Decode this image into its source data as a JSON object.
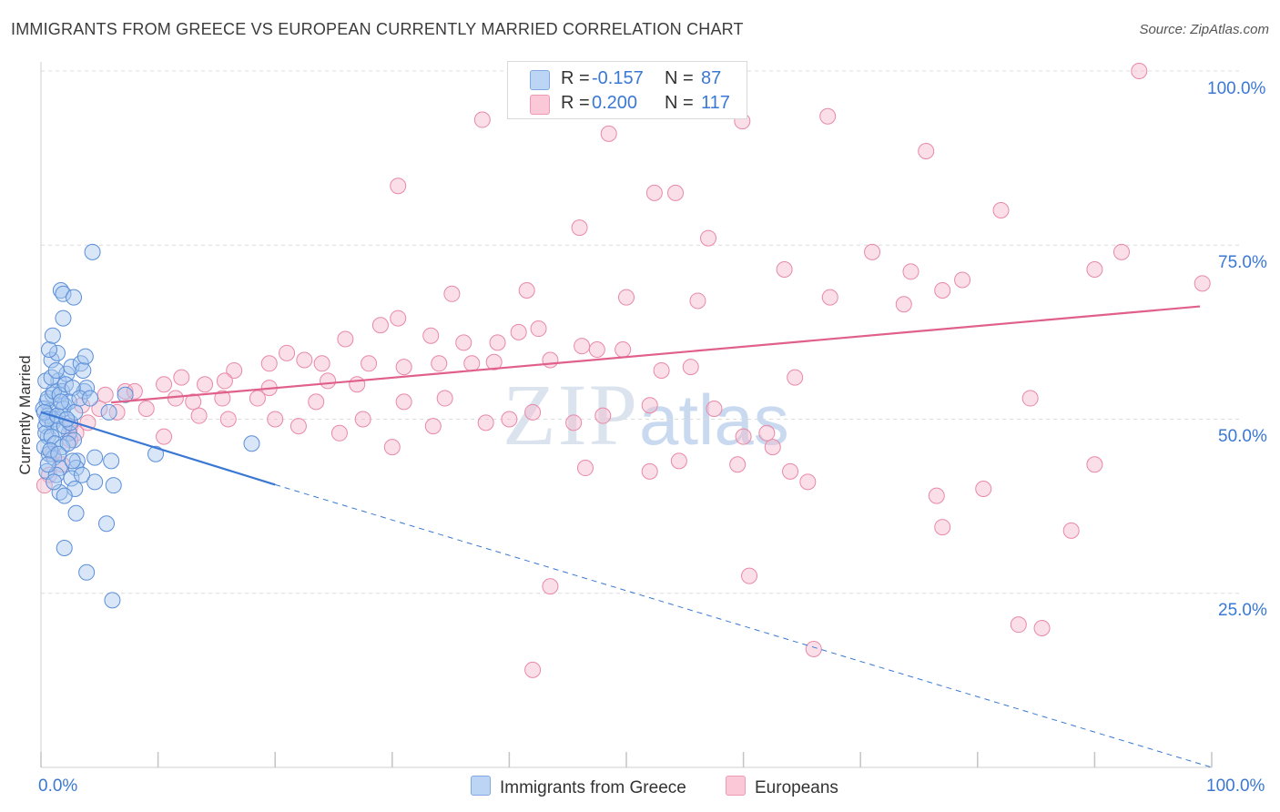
{
  "title": "IMMIGRANTS FROM GREECE VS EUROPEAN CURRENTLY MARRIED CORRELATION CHART",
  "source": "Source: ZipAtlas.com",
  "watermark": {
    "zip": "ZIP",
    "atlas": "atlas"
  },
  "legend": {
    "rows": [
      {
        "r_label": "R =",
        "r_value": "-0.157",
        "n_label": "N =",
        "n_value": "87",
        "color": "#a8c8f0"
      },
      {
        "r_label": "R =",
        "r_value": "0.200",
        "n_label": "N =",
        "n_value": "117",
        "color": "#f7b7cb"
      }
    ]
  },
  "bottom_legend": [
    "Immigrants from Greece",
    "Europeans"
  ],
  "colors": {
    "blue": "#3a78d4",
    "pink": "#e0608a",
    "blue_fill": "#a8c8f0",
    "pink_fill": "#f7b7cb"
  },
  "chart_data": {
    "type": "scatter",
    "ylabel": "Currently Married",
    "xlabel": "",
    "x_tick_labels": [
      "0.0%",
      "100.0%"
    ],
    "y_tick_labels": [
      "100.0%",
      "75.0%",
      "50.0%",
      "25.0%"
    ],
    "xlim": [
      0,
      100
    ],
    "ylim": [
      0,
      100
    ],
    "y_ticks": [
      100,
      75,
      50,
      25
    ],
    "grid": "horizontal dashed",
    "series": [
      {
        "name": "Immigrants from Greece",
        "color": "#3a78d4",
        "trend": {
          "x0": 0,
          "y0": 51.0,
          "x1": 20,
          "y1": 40.6,
          "dashed_to_x": 100,
          "dashed_to_y": 0
        },
        "points": [
          [
            0.5,
            52.5
          ],
          [
            0.8,
            51.2
          ],
          [
            1.0,
            53.5
          ],
          [
            1.2,
            50.0
          ],
          [
            0.4,
            49.0
          ],
          [
            0.6,
            47.5
          ],
          [
            1.5,
            55.5
          ],
          [
            1.8,
            54.0
          ],
          [
            2.0,
            52.0
          ],
          [
            2.2,
            56.5
          ],
          [
            0.9,
            58.5
          ],
          [
            1.4,
            59.5
          ],
          [
            2.6,
            57.5
          ],
          [
            3.4,
            58.0
          ],
          [
            3.6,
            57.0
          ],
          [
            3.8,
            59.0
          ],
          [
            1.7,
            68.5
          ],
          [
            1.9,
            68.0
          ],
          [
            2.8,
            67.5
          ],
          [
            1.9,
            64.5
          ],
          [
            4.4,
            74.0
          ],
          [
            0.3,
            46.0
          ],
          [
            0.7,
            45.0
          ],
          [
            1.1,
            44.5
          ],
          [
            1.6,
            43.0
          ],
          [
            0.5,
            42.5
          ],
          [
            1.3,
            42.0
          ],
          [
            2.4,
            48.0
          ],
          [
            2.8,
            47.0
          ],
          [
            3.1,
            44.0
          ],
          [
            3.0,
            43.0
          ],
          [
            2.6,
            41.5
          ],
          [
            4.6,
            41.0
          ],
          [
            6.2,
            40.5
          ],
          [
            2.9,
            40.0
          ],
          [
            4.6,
            44.5
          ],
          [
            6.0,
            44.0
          ],
          [
            1.6,
            39.5
          ],
          [
            2.0,
            39.0
          ],
          [
            3.0,
            36.5
          ],
          [
            5.6,
            35.0
          ],
          [
            2.0,
            31.5
          ],
          [
            3.9,
            28.0
          ],
          [
            6.1,
            24.0
          ],
          [
            5.8,
            51.0
          ],
          [
            7.2,
            53.5
          ],
          [
            3.7,
            54.0
          ],
          [
            3.9,
            54.5
          ],
          [
            0.2,
            51.5
          ],
          [
            0.6,
            50.5
          ],
          [
            1.0,
            49.5
          ],
          [
            1.5,
            48.5
          ],
          [
            2.0,
            49.0
          ],
          [
            2.5,
            49.5
          ],
          [
            0.4,
            48.0
          ],
          [
            0.9,
            47.5
          ],
          [
            1.2,
            46.5
          ],
          [
            1.8,
            46.0
          ],
          [
            2.3,
            46.5
          ],
          [
            0.6,
            53.0
          ],
          [
            1.1,
            54.0
          ],
          [
            1.6,
            53.5
          ],
          [
            2.1,
            55.0
          ],
          [
            2.7,
            54.5
          ],
          [
            0.4,
            55.5
          ],
          [
            0.9,
            56.0
          ],
          [
            1.3,
            57.0
          ],
          [
            0.7,
            60.0
          ],
          [
            1.0,
            62.0
          ],
          [
            0.3,
            51.0
          ],
          [
            0.5,
            50.0
          ],
          [
            1.9,
            51.5
          ],
          [
            2.4,
            52.5
          ],
          [
            2.9,
            51.0
          ],
          [
            3.3,
            53.0
          ],
          [
            1.4,
            50.5
          ],
          [
            1.7,
            52.5
          ],
          [
            2.2,
            50.0
          ],
          [
            0.8,
            45.5
          ],
          [
            1.5,
            45.0
          ],
          [
            2.7,
            44.0
          ],
          [
            0.6,
            43.5
          ],
          [
            1.1,
            41.0
          ],
          [
            3.5,
            42.0
          ],
          [
            9.8,
            45.0
          ],
          [
            18.0,
            46.5
          ],
          [
            4.2,
            53.0
          ]
        ]
      },
      {
        "name": "Europeans",
        "color": "#e0608a",
        "trend": {
          "x0": 6,
          "y0": 52.4,
          "x1": 99,
          "y1": 66.2
        },
        "points": [
          [
            93.8,
            100.0
          ],
          [
            37.7,
            93.0
          ],
          [
            48.5,
            91.0
          ],
          [
            59.9,
            92.8
          ],
          [
            67.2,
            93.5
          ],
          [
            75.6,
            88.5
          ],
          [
            30.5,
            83.5
          ],
          [
            52.4,
            82.5
          ],
          [
            54.2,
            82.5
          ],
          [
            82.0,
            80.0
          ],
          [
            46.0,
            77.5
          ],
          [
            57.0,
            76.0
          ],
          [
            71.0,
            74.0
          ],
          [
            92.3,
            74.0
          ],
          [
            90.0,
            71.5
          ],
          [
            74.3,
            71.2
          ],
          [
            63.5,
            71.5
          ],
          [
            78.7,
            70.0
          ],
          [
            99.2,
            69.5
          ],
          [
            41.5,
            68.5
          ],
          [
            35.1,
            68.0
          ],
          [
            56.1,
            67.0
          ],
          [
            67.4,
            67.5
          ],
          [
            73.7,
            66.5
          ],
          [
            77.0,
            68.5
          ],
          [
            50.0,
            67.5
          ],
          [
            40.8,
            62.5
          ],
          [
            36.1,
            61.0
          ],
          [
            42.5,
            63.0
          ],
          [
            30.5,
            64.5
          ],
          [
            29.0,
            63.5
          ],
          [
            33.3,
            62.0
          ],
          [
            46.2,
            60.5
          ],
          [
            39.0,
            61.0
          ],
          [
            47.5,
            60.0
          ],
          [
            21.0,
            59.5
          ],
          [
            26.0,
            61.5
          ],
          [
            22.5,
            58.5
          ],
          [
            12.0,
            56.0
          ],
          [
            16.5,
            57.0
          ],
          [
            19.5,
            58.0
          ],
          [
            24.0,
            58.0
          ],
          [
            28.0,
            58.0
          ],
          [
            31.0,
            57.5
          ],
          [
            34.0,
            58.0
          ],
          [
            36.8,
            58.0
          ],
          [
            38.7,
            58.2
          ],
          [
            43.5,
            58.5
          ],
          [
            49.7,
            60.0
          ],
          [
            53.0,
            57.0
          ],
          [
            55.5,
            57.5
          ],
          [
            64.4,
            56.0
          ],
          [
            7.2,
            54.0
          ],
          [
            10.5,
            55.0
          ],
          [
            14.0,
            55.0
          ],
          [
            15.7,
            55.5
          ],
          [
            19.5,
            54.5
          ],
          [
            24.5,
            55.5
          ],
          [
            27.0,
            55.0
          ],
          [
            5.5,
            53.5
          ],
          [
            8.0,
            54.0
          ],
          [
            11.5,
            53.0
          ],
          [
            13.0,
            52.5
          ],
          [
            15.5,
            53.0
          ],
          [
            18.5,
            53.0
          ],
          [
            23.5,
            52.5
          ],
          [
            31.0,
            52.5
          ],
          [
            34.5,
            53.0
          ],
          [
            42.0,
            51.0
          ],
          [
            52.0,
            52.0
          ],
          [
            57.5,
            51.5
          ],
          [
            62.0,
            48.0
          ],
          [
            48.0,
            50.5
          ],
          [
            3.5,
            52.0
          ],
          [
            5.0,
            51.5
          ],
          [
            4.0,
            49.5
          ],
          [
            6.5,
            51.0
          ],
          [
            2.5,
            49.0
          ],
          [
            3.0,
            48.0
          ],
          [
            9.0,
            51.5
          ],
          [
            13.5,
            50.5
          ],
          [
            16.0,
            50.0
          ],
          [
            20.0,
            50.0
          ],
          [
            22.0,
            49.0
          ],
          [
            25.5,
            48.0
          ],
          [
            27.5,
            50.0
          ],
          [
            30.0,
            46.0
          ],
          [
            33.5,
            49.0
          ],
          [
            38.0,
            49.5
          ],
          [
            40.0,
            50.0
          ],
          [
            45.5,
            49.5
          ],
          [
            60.0,
            47.5
          ],
          [
            62.5,
            46.0
          ],
          [
            54.5,
            44.0
          ],
          [
            59.5,
            43.5
          ],
          [
            2.5,
            47.0
          ],
          [
            1.0,
            45.0
          ],
          [
            0.7,
            42.0
          ],
          [
            0.3,
            40.5
          ],
          [
            1.8,
            43.5
          ],
          [
            10.5,
            47.5
          ],
          [
            46.5,
            43.0
          ],
          [
            52.0,
            42.5
          ],
          [
            64.0,
            42.5
          ],
          [
            65.5,
            41.0
          ],
          [
            76.5,
            39.0
          ],
          [
            90.0,
            43.5
          ],
          [
            84.5,
            53.0
          ],
          [
            80.5,
            40.0
          ],
          [
            77.0,
            34.5
          ],
          [
            88.0,
            34.0
          ],
          [
            60.5,
            27.5
          ],
          [
            43.5,
            26.0
          ],
          [
            66.0,
            17.0
          ],
          [
            83.5,
            20.5
          ],
          [
            85.5,
            20.0
          ],
          [
            42.0,
            14.0
          ]
        ]
      }
    ]
  }
}
